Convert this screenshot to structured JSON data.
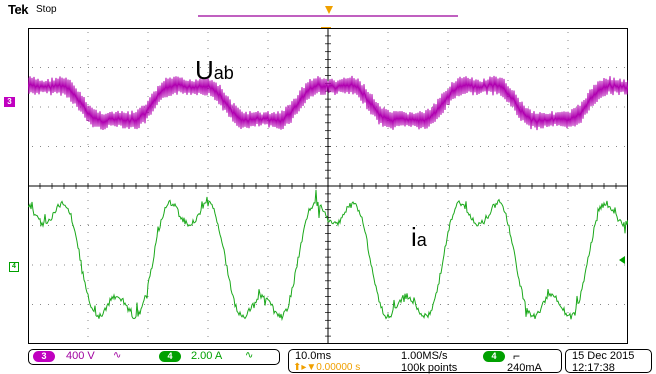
{
  "header": {
    "brand": "Tek",
    "acq_state": "Stop",
    "trigger_marker": "T"
  },
  "waveforms": {
    "ch3": {
      "marker": "3",
      "label_main": "U",
      "label_sub": "ab",
      "color": "#b000b0"
    },
    "ch4": {
      "marker": "4",
      "label_main": "i",
      "label_sub": "a",
      "color": "#1aa81a"
    }
  },
  "status_bar": {
    "ch3": {
      "number": "3",
      "scale": "400 V",
      "bw_icon": "∿"
    },
    "ch4": {
      "number": "4",
      "scale": "2.00 A",
      "bw_icon": "∿"
    },
    "timebase": "10.0ms",
    "trigger_position": "⬆▸▼0.00000 s",
    "sample_rate": "1.00MS/s",
    "record_length": "100k points",
    "trigger": {
      "source": "4",
      "slope": "⌐",
      "level": "240mA"
    },
    "date": "15 Dec  2015",
    "time": "12:17:38"
  },
  "colors": {
    "grid_border": "#000000",
    "grid_dots": "#888888",
    "ch3": "#b000b0",
    "ch4": "#1aa81a",
    "trigger": "#f0a000"
  }
}
